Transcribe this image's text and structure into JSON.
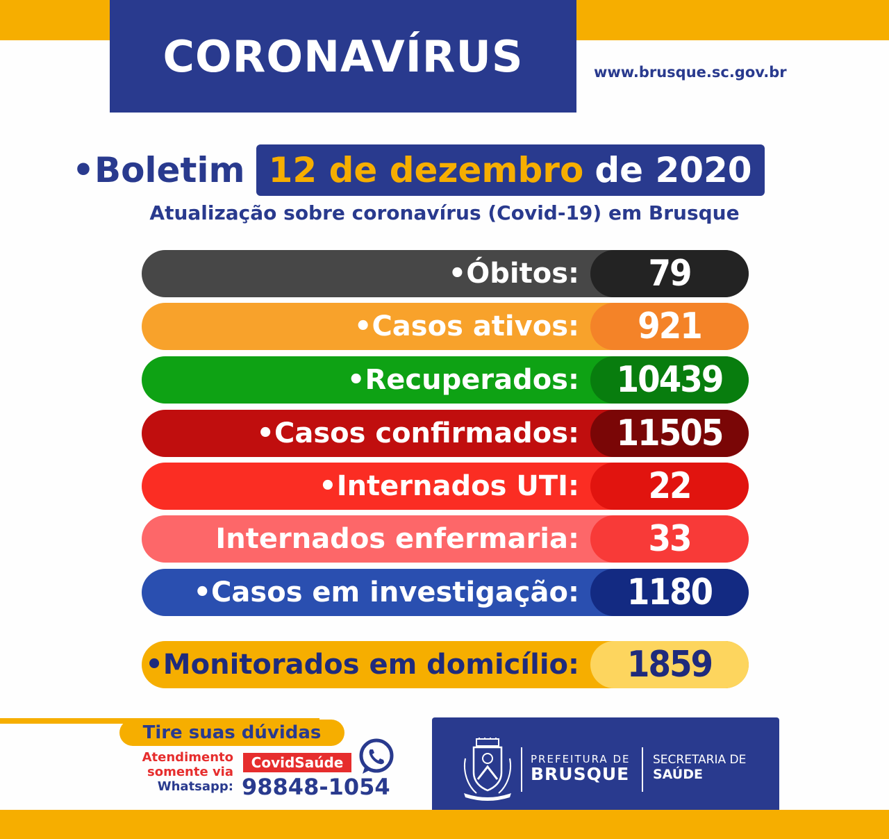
{
  "header": {
    "title": "CORONAVÍRUS",
    "website": "www.brusque.sc.gov.br"
  },
  "bulletin": {
    "label": "•Boletim",
    "date_highlight": "12 de dezembro",
    "date_rest": "de 2020",
    "subtitle": "Atualização sobre coronavírus (Covid-19) em Brusque"
  },
  "stats": [
    {
      "label": "•Óbitos:",
      "value": "79",
      "bar_color": "#474747",
      "value_color": "#232323",
      "text_color": "#ffffff"
    },
    {
      "label": "•Casos ativos:",
      "value": "921",
      "bar_color": "#f8a22b",
      "value_color": "#f48328",
      "text_color": "#ffffff"
    },
    {
      "label": "•Recuperados:",
      "value": "10439",
      "bar_color": "#0ea214",
      "value_color": "#087d0e",
      "text_color": "#ffffff"
    },
    {
      "label": "•Casos confirmados:",
      "value": "11505",
      "bar_color": "#c00e0e",
      "value_color": "#7a0606",
      "text_color": "#ffffff"
    },
    {
      "label": "•Internados UTI:",
      "value": "22",
      "bar_color": "#fb2d23",
      "value_color": "#e1140f",
      "text_color": "#ffffff"
    },
    {
      "label": "Internados enfermaria:",
      "value": "33",
      "bar_color": "#fd6769",
      "value_color": "#f83a38",
      "text_color": "#ffffff"
    },
    {
      "label": "•Casos em investigação:",
      "value": "1180",
      "bar_color": "#2a4fb0",
      "value_color": "#132a82",
      "text_color": "#ffffff"
    }
  ],
  "monitor": {
    "label": "•Monitorados em domicílio:",
    "value": "1859",
    "bar_color": "#f6ae00",
    "value_color": "#fdd55e",
    "text_color": "#1f2b7c"
  },
  "help": {
    "title": "Tire suas dúvidas",
    "line1": "Atendimento",
    "line2": "somente via",
    "line3": "Whatsapp:",
    "tag": "CovidSaúde",
    "phone": "98848-1054"
  },
  "logo": {
    "pref_small": "PREFEITURA DE",
    "pref_big": "BRUSQUE",
    "sec_line1": "SECRETARIA DE",
    "sec_line2": "SAÚDE",
    "crest_icon": "city-crest-icon",
    "whatsapp_icon": "whatsapp-icon"
  }
}
